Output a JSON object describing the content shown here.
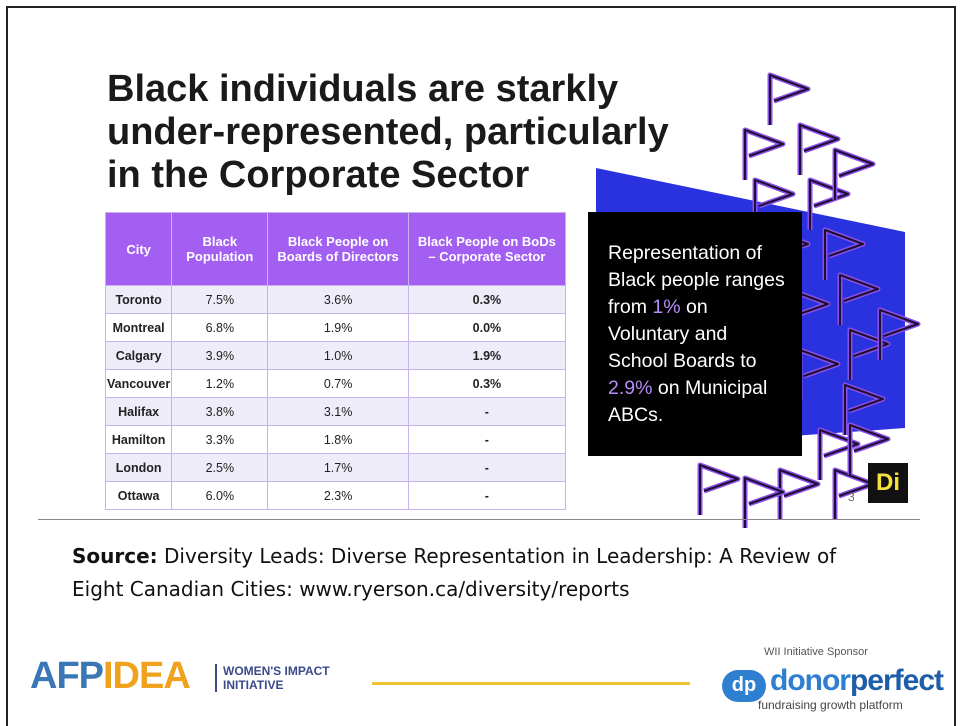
{
  "slide": {
    "title": [
      "Black individuals are starkly",
      "under-represented, particularly",
      "in the Corporate Sector"
    ],
    "table": {
      "header": [
        "City",
        "Black Population",
        "Black People on Boards of Directors",
        "Black People on BoDs – Corporate Sector"
      ],
      "rows": [
        [
          "Toronto",
          "7.5%",
          "3.6%",
          "0.3%"
        ],
        [
          "Montreal",
          "6.8%",
          "1.9%",
          "0.0%"
        ],
        [
          "Calgary",
          "3.9%",
          "1.0%",
          "1.9%"
        ],
        [
          "Vancouver",
          "1.2%",
          "0.7%",
          "0.3%"
        ],
        [
          "Halifax",
          "3.8%",
          "3.1%",
          "-"
        ],
        [
          "Hamilton",
          "3.3%",
          "1.8%",
          "-"
        ],
        [
          "London",
          "2.5%",
          "1.7%",
          "-"
        ],
        [
          "Ottawa",
          "6.0%",
          "2.3%",
          "-"
        ]
      ]
    },
    "callout": [
      "Representation of Black people ranges from ",
      "1%",
      " on Voluntary and School Boards to ",
      "2.9%",
      " on Municipal ABCs."
    ],
    "page_number": "3",
    "brand_mark": "Di"
  },
  "source": {
    "label": "Source:",
    "text": " Diversity Leads: Diverse Representation in Leadership: A Review of Eight Canadian Cities: www.ryerson.ca/diversity/reports"
  },
  "footer": {
    "afp": "AFP",
    "idea": "IDEA",
    "wii": [
      "WOMEN'S IMPACT",
      "INITIATIVE"
    ],
    "sponsor_label": "WII Initiative Sponsor",
    "dp": "dp",
    "donor": "donor",
    "perfect": "perfect",
    "tagline": "fundraising growth platform"
  }
}
